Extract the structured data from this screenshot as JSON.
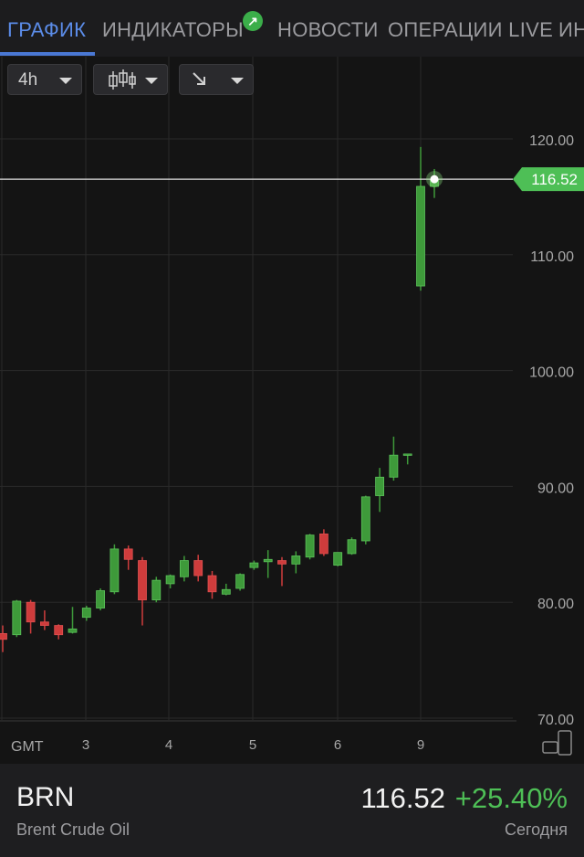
{
  "tabs": [
    {
      "label": "ГРАФИК",
      "active": true
    },
    {
      "label": "ИНДИКАТОРЫ",
      "active": false
    },
    {
      "label": "НОВОСТИ",
      "active": false
    },
    {
      "label": "ОПЕРАЦИИ LIVE",
      "active": false
    },
    {
      "label": "ИН",
      "active": false
    }
  ],
  "toolbar": {
    "timeframe": "4h",
    "chart_type_icon": "candlestick-icon",
    "trend_icon": "arrow-down-right-icon"
  },
  "chart_data": {
    "type": "candlestick",
    "timezone_label": "GMT",
    "x_ticks": [
      "3",
      "4",
      "5",
      "6",
      "9"
    ],
    "ylim": [
      70,
      120
    ],
    "y_ticks": [
      "120.00",
      "110.00",
      "100.00",
      "90.00",
      "80.00",
      "70.00"
    ],
    "current_price_label": "116.52",
    "current_price": 116.52,
    "candles": [
      {
        "o": 77.3,
        "h": 78.0,
        "l": 75.7,
        "c": 76.8
      },
      {
        "o": 77.2,
        "h": 80.2,
        "l": 77.0,
        "c": 80.1
      },
      {
        "o": 80.0,
        "h": 80.2,
        "l": 77.3,
        "c": 78.3
      },
      {
        "o": 78.3,
        "h": 79.3,
        "l": 77.6,
        "c": 78.0
      },
      {
        "o": 78.0,
        "h": 78.1,
        "l": 76.8,
        "c": 77.2
      },
      {
        "o": 77.4,
        "h": 79.6,
        "l": 77.3,
        "c": 77.7
      },
      {
        "o": 78.7,
        "h": 79.7,
        "l": 78.4,
        "c": 79.5
      },
      {
        "o": 79.5,
        "h": 81.2,
        "l": 79.3,
        "c": 81.0
      },
      {
        "o": 80.9,
        "h": 85.0,
        "l": 80.7,
        "c": 84.6
      },
      {
        "o": 84.6,
        "h": 84.9,
        "l": 82.8,
        "c": 83.7
      },
      {
        "o": 83.6,
        "h": 83.9,
        "l": 78.0,
        "c": 80.2
      },
      {
        "o": 80.2,
        "h": 82.2,
        "l": 80.0,
        "c": 81.9
      },
      {
        "o": 81.6,
        "h": 82.4,
        "l": 81.2,
        "c": 82.3
      },
      {
        "o": 82.2,
        "h": 84.0,
        "l": 81.8,
        "c": 83.6
      },
      {
        "o": 83.6,
        "h": 84.1,
        "l": 81.8,
        "c": 82.3
      },
      {
        "o": 82.3,
        "h": 82.7,
        "l": 80.3,
        "c": 80.9
      },
      {
        "o": 80.7,
        "h": 81.6,
        "l": 80.6,
        "c": 81.1
      },
      {
        "o": 81.2,
        "h": 82.5,
        "l": 81.0,
        "c": 82.4
      },
      {
        "o": 83.0,
        "h": 83.6,
        "l": 82.8,
        "c": 83.4
      },
      {
        "o": 83.5,
        "h": 84.5,
        "l": 82.1,
        "c": 83.7
      },
      {
        "o": 83.6,
        "h": 83.9,
        "l": 81.4,
        "c": 83.3
      },
      {
        "o": 83.3,
        "h": 84.4,
        "l": 82.5,
        "c": 84.0
      },
      {
        "o": 83.9,
        "h": 85.9,
        "l": 83.7,
        "c": 85.8
      },
      {
        "o": 85.9,
        "h": 86.3,
        "l": 84.0,
        "c": 84.2
      },
      {
        "o": 83.2,
        "h": 84.3,
        "l": 83.1,
        "c": 84.3
      },
      {
        "o": 84.2,
        "h": 85.6,
        "l": 84.1,
        "c": 85.4
      },
      {
        "o": 85.3,
        "h": 89.2,
        "l": 85.0,
        "c": 89.1
      },
      {
        "o": 89.2,
        "h": 91.6,
        "l": 87.8,
        "c": 90.8
      },
      {
        "o": 90.8,
        "h": 94.3,
        "l": 90.5,
        "c": 92.7
      },
      {
        "o": 92.7,
        "h": 92.8,
        "l": 91.9,
        "c": 92.8
      },
      {
        "o": 107.3,
        "h": 119.3,
        "l": 106.9,
        "c": 115.9
      },
      {
        "o": 115.9,
        "h": 117.4,
        "l": 114.9,
        "c": 116.52
      }
    ]
  },
  "footer": {
    "symbol": "BRN",
    "name": "Brent Crude Oil",
    "price": "116.52",
    "change": "+25.40%",
    "period": "Сегодня"
  },
  "colors": {
    "up": "#3e9a3a",
    "down": "#cf3c3c",
    "price_tag": "#4ebf56",
    "active_tab": "#5b8ce8",
    "background": "#141414"
  }
}
